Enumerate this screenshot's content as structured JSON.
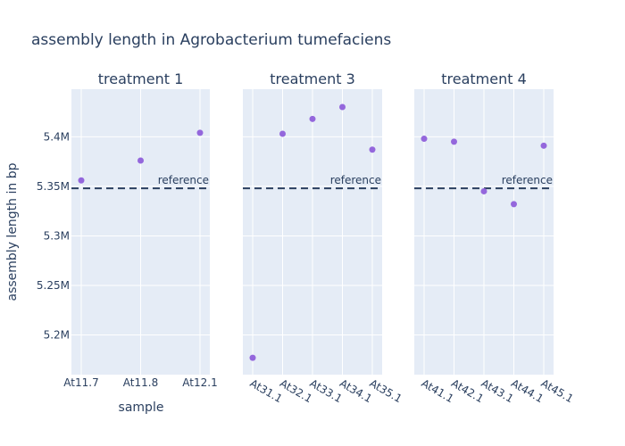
{
  "chart_data": {
    "type": "scatter",
    "title": "assembly length in Agrobacterium tumefaciens",
    "xlabel": "sample",
    "ylabel": "assembly length in bp",
    "ylim": [
      5160000,
      5448000
    ],
    "yticks": [
      5200000,
      5250000,
      5300000,
      5350000,
      5400000
    ],
    "ytick_labels": [
      "5.2M",
      "5.25M",
      "5.3M",
      "5.35M",
      "5.4M"
    ],
    "reference": {
      "value": 5348000,
      "label": "reference"
    },
    "grid": true,
    "colors": {
      "marker": "#9467dc",
      "plot_bg": "#e5ecf6",
      "reference_line": "#2a3f5f",
      "text": "#2a3f5f"
    },
    "panels": [
      {
        "title": "treatment 1",
        "categories": [
          "At11.7",
          "At11.8",
          "At12.1"
        ],
        "values": [
          5356000,
          5376000,
          5404000
        ]
      },
      {
        "title": "treatment 3",
        "categories": [
          "At31.1",
          "At32.1",
          "At33.1",
          "At34.1",
          "At35.1"
        ],
        "values": [
          5177000,
          5403000,
          5418000,
          5430000,
          5387000
        ]
      },
      {
        "title": "treatment 4",
        "categories": [
          "At41.1",
          "At42.1",
          "At43.1",
          "At44.1",
          "At45.1"
        ],
        "values": [
          5398000,
          5395000,
          5345000,
          5332000,
          5391000
        ]
      }
    ]
  }
}
